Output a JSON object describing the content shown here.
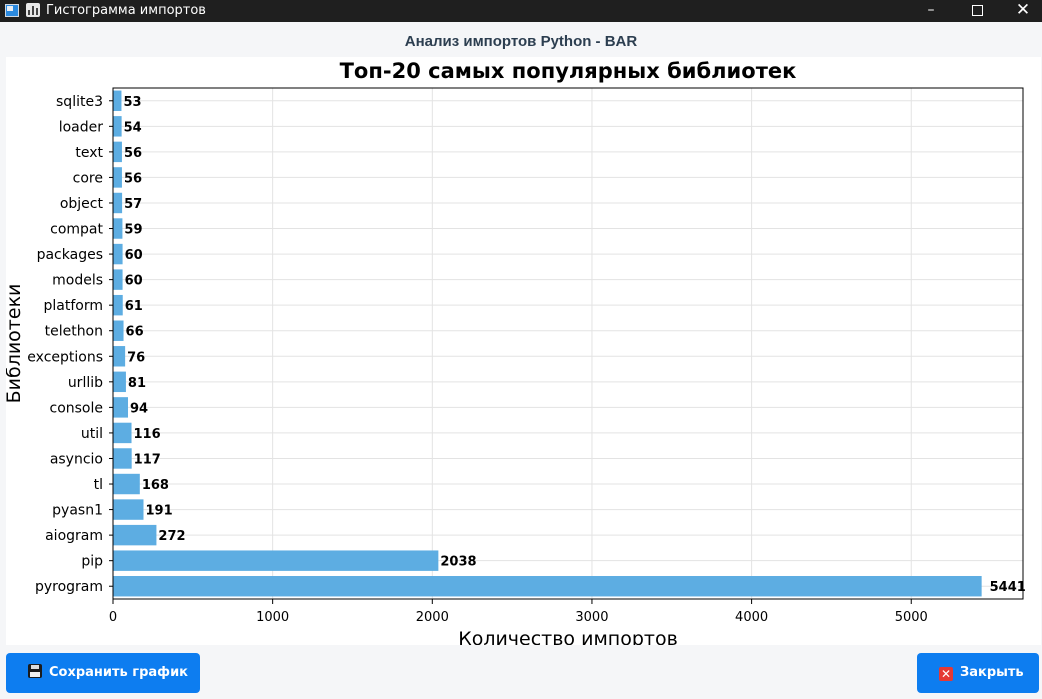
{
  "window": {
    "title": "Гистограмма импортов",
    "app_icon": "window-app-icon",
    "chart_icon": "bar-chart-icon",
    "controls": {
      "minimize": "–",
      "maximize": "□",
      "close": "✕"
    }
  },
  "header": {
    "title": "Анализ импортов Python - BAR"
  },
  "chart_data": {
    "type": "bar",
    "orientation": "horizontal",
    "title": "Топ-20 самых популярных библиотек",
    "xlabel": "Количество импортов",
    "ylabel": "Библиотеки",
    "xlim": [
      0,
      5700
    ],
    "xticks": [
      "0",
      "1000",
      "2000",
      "3000",
      "4000",
      "5000"
    ],
    "grid": true,
    "bar_color": "#5dade2",
    "categories": [
      "pyrogram",
      "pip",
      "aiogram",
      "pyasn1",
      "tl",
      "asyncio",
      "util",
      "console",
      "urllib",
      "exceptions",
      "telethon",
      "platform",
      "models",
      "packages",
      "compat",
      "object",
      "core",
      "text",
      "loader",
      "sqlite3"
    ],
    "values": [
      5441,
      2038,
      272,
      191,
      168,
      117,
      116,
      94,
      81,
      76,
      66,
      61,
      60,
      60,
      59,
      57,
      56,
      56,
      54,
      53
    ]
  },
  "buttons": {
    "save": {
      "label": "Сохранить график",
      "icon": "floppy-disk-icon"
    },
    "close": {
      "label": "Закрыть",
      "icon": "cross-mark-icon"
    }
  }
}
